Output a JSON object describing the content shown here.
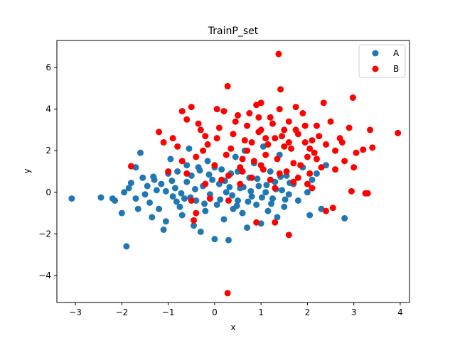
{
  "chart_data": {
    "type": "scatter",
    "title": "TrainP_set",
    "xlabel": "x",
    "ylabel": "y",
    "xlim": [
      -3.4,
      4.2
    ],
    "ylim": [
      -5.3,
      7.3
    ],
    "xticks": [
      -3,
      -2,
      -1,
      0,
      1,
      2,
      3,
      4
    ],
    "yticks": [
      -4,
      -2,
      0,
      2,
      4,
      6
    ],
    "xtick_labels": [
      "−3",
      "−2",
      "−1",
      "0",
      "1",
      "2",
      "3",
      "4"
    ],
    "ytick_labels": [
      "−4",
      "−2",
      "0",
      "2",
      "4",
      "6"
    ],
    "grid": false,
    "legend_position": "top-right",
    "series": [
      {
        "name": "A",
        "color": "#1f77b4",
        "points": [
          [
            -3.08,
            -0.3
          ],
          [
            -2.45,
            -0.25
          ],
          [
            -2.2,
            -0.3
          ],
          [
            -2.15,
            -0.4
          ],
          [
            -2.0,
            -1.0
          ],
          [
            -1.95,
            0.0
          ],
          [
            -1.9,
            -2.6
          ],
          [
            -1.85,
            0.2
          ],
          [
            -1.8,
            0.45
          ],
          [
            -1.7,
            -0.3
          ],
          [
            -1.65,
            -0.8
          ],
          [
            -1.6,
            1.9
          ],
          [
            -1.55,
            0.7
          ],
          [
            -1.5,
            -0.1
          ],
          [
            -1.45,
            0.3
          ],
          [
            -1.4,
            -0.5
          ],
          [
            -1.35,
            -1.2
          ],
          [
            -1.3,
            0.6
          ],
          [
            -1.25,
            0.1
          ],
          [
            -1.2,
            -0.8
          ],
          [
            -1.15,
            0.4
          ],
          [
            -1.1,
            -1.8
          ],
          [
            -1.05,
            -1.4
          ],
          [
            -1.0,
            0.9
          ],
          [
            -0.95,
            1.6
          ],
          [
            -0.9,
            -0.2
          ],
          [
            -0.85,
            0.2
          ],
          [
            -0.8,
            1.0
          ],
          [
            -0.75,
            -0.7
          ],
          [
            -0.7,
            -1.1
          ],
          [
            -0.65,
            -0.3
          ],
          [
            -0.6,
            0.5
          ],
          [
            -0.55,
            2.1
          ],
          [
            -0.5,
            0.8
          ],
          [
            -0.45,
            -1.6
          ],
          [
            -0.4,
            -0.4
          ],
          [
            -0.35,
            1.2
          ],
          [
            -0.3,
            -1.9
          ],
          [
            -0.25,
            0.3
          ],
          [
            -0.2,
            -0.9
          ],
          [
            -0.15,
            1.5
          ],
          [
            -0.1,
            -0.1
          ],
          [
            -0.05,
            0.6
          ],
          [
            0.0,
            -2.25
          ],
          [
            0.05,
            -0.6
          ],
          [
            0.1,
            0.4
          ],
          [
            0.15,
            1.1
          ],
          [
            0.2,
            -1.3
          ],
          [
            0.25,
            0.0
          ],
          [
            0.3,
            -2.3
          ],
          [
            0.35,
            0.9
          ],
          [
            0.4,
            -0.8
          ],
          [
            0.45,
            1.7
          ],
          [
            0.5,
            -0.4
          ],
          [
            0.55,
            0.2
          ],
          [
            0.6,
            -1.0
          ],
          [
            0.65,
            2.0
          ],
          [
            0.7,
            -1.7
          ],
          [
            0.75,
            0.7
          ],
          [
            0.8,
            -0.2
          ],
          [
            0.85,
            1.4
          ],
          [
            0.9,
            -0.6
          ],
          [
            0.95,
            0.3
          ],
          [
            1.0,
            -1.5
          ],
          [
            1.05,
            2.2
          ],
          [
            1.1,
            0.0
          ],
          [
            1.15,
            -0.9
          ],
          [
            1.2,
            1.0
          ],
          [
            1.25,
            -0.3
          ],
          [
            1.3,
            0.5
          ],
          [
            1.35,
            -1.2
          ],
          [
            1.4,
            1.8
          ],
          [
            1.45,
            0.1
          ],
          [
            1.5,
            -0.7
          ],
          [
            1.55,
            0.8
          ],
          [
            1.6,
            -0.1
          ],
          [
            1.7,
            0.4
          ],
          [
            1.8,
            -0.4
          ],
          [
            1.9,
            1.2
          ],
          [
            2.0,
            0.0
          ],
          [
            2.05,
            -1.1
          ],
          [
            2.1,
            0.6
          ],
          [
            2.2,
            0.9
          ],
          [
            2.3,
            -0.8
          ],
          [
            2.4,
            1.3
          ],
          [
            2.8,
            -1.25
          ],
          [
            -1.7,
            1.2
          ],
          [
            -0.6,
            1.3
          ],
          [
            0.0,
            1.2
          ],
          [
            0.5,
            1.0
          ],
          [
            -1.05,
            0.05
          ],
          [
            -0.72,
            -0.05
          ],
          [
            -0.42,
            0.15
          ],
          [
            0.12,
            -0.35
          ],
          [
            0.62,
            0.25
          ],
          [
            1.02,
            -0.25
          ],
          [
            1.32,
            0.15
          ],
          [
            -0.22,
            -0.55
          ],
          [
            0.38,
            -0.15
          ],
          [
            0.78,
            0.05
          ],
          [
            1.12,
            0.35
          ],
          [
            -0.52,
            -0.25
          ],
          [
            -0.82,
            -0.45
          ],
          [
            0.22,
            0.55
          ],
          [
            0.92,
            0.65
          ],
          [
            1.62,
            0.45
          ],
          [
            -1.32,
            0.75
          ],
          [
            -0.12,
            0.85
          ],
          [
            0.48,
            -0.65
          ],
          [
            1.22,
            -0.55
          ],
          [
            -0.32,
            1.05
          ],
          [
            0.72,
            -0.45
          ],
          [
            1.52,
            -0.35
          ],
          [
            -0.92,
            0.55
          ],
          [
            0.32,
            0.25
          ],
          [
            1.42,
            0.75
          ]
        ]
      },
      {
        "name": "B",
        "color": "#ff0000",
        "points": [
          [
            0.28,
            -4.85
          ],
          [
            1.38,
            6.65
          ],
          [
            0.28,
            5.1
          ],
          [
            1.42,
            4.95
          ],
          [
            2.98,
            4.55
          ],
          [
            3.95,
            2.85
          ],
          [
            3.35,
            3.0
          ],
          [
            3.4,
            2.15
          ],
          [
            3.2,
            2.05
          ],
          [
            3.25,
            -0.05
          ],
          [
            3.3,
            -0.05
          ],
          [
            2.95,
            0.05
          ],
          [
            2.55,
            -0.75
          ],
          [
            1.6,
            -2.05
          ],
          [
            1.3,
            -1.45
          ],
          [
            0.9,
            -1.45
          ],
          [
            -0.45,
            -1.35
          ],
          [
            -0.2,
            0.4
          ],
          [
            -0.5,
            -0.4
          ],
          [
            -0.4,
            -1.0
          ],
          [
            -1.8,
            1.25
          ],
          [
            -1.2,
            2.9
          ],
          [
            -1.0,
            1.0
          ],
          [
            -0.7,
            1.5
          ],
          [
            -0.5,
            4.1
          ],
          [
            -0.3,
            3.0
          ],
          [
            -0.15,
            2.3
          ],
          [
            0.05,
            2.6
          ],
          [
            0.2,
            3.9
          ],
          [
            0.35,
            2.1
          ],
          [
            0.5,
            3.7
          ],
          [
            0.6,
            1.6
          ],
          [
            0.7,
            3.2
          ],
          [
            0.8,
            2.4
          ],
          [
            0.9,
            4.2
          ],
          [
            1.0,
            3.0
          ],
          [
            1.1,
            1.8
          ],
          [
            1.2,
            3.6
          ],
          [
            1.3,
            2.6
          ],
          [
            1.4,
            4.0
          ],
          [
            1.5,
            2.2
          ],
          [
            1.6,
            3.4
          ],
          [
            1.7,
            1.4
          ],
          [
            1.8,
            2.8
          ],
          [
            1.9,
            3.8
          ],
          [
            2.0,
            1.7
          ],
          [
            2.1,
            2.5
          ],
          [
            2.2,
            3.2
          ],
          [
            2.3,
            1.2
          ],
          [
            2.4,
            2.3
          ],
          [
            2.5,
            3.4
          ],
          [
            2.6,
            2.0
          ],
          [
            2.7,
            2.6
          ],
          [
            2.8,
            1.5
          ],
          [
            2.9,
            3.1
          ],
          [
            3.0,
            1.2
          ],
          [
            -0.8,
            2.2
          ],
          [
            -0.6,
            3.5
          ],
          [
            -0.4,
            1.7
          ],
          [
            -0.2,
            2.7
          ],
          [
            0.0,
            1.3
          ],
          [
            0.1,
            3.1
          ],
          [
            0.25,
            1.8
          ],
          [
            0.4,
            2.8
          ],
          [
            0.55,
            1.2
          ],
          [
            0.65,
            2.5
          ],
          [
            0.75,
            3.8
          ],
          [
            0.85,
            1.5
          ],
          [
            0.95,
            2.9
          ],
          [
            1.05,
            1.1
          ],
          [
            1.15,
            2.3
          ],
          [
            1.25,
            3.3
          ],
          [
            1.35,
            1.6
          ],
          [
            1.45,
            2.7
          ],
          [
            1.55,
            1.0
          ],
          [
            1.65,
            2.1
          ],
          [
            1.75,
            3.0
          ],
          [
            1.85,
            1.3
          ],
          [
            1.95,
            2.4
          ],
          [
            2.05,
            0.9
          ],
          [
            2.15,
            1.9
          ],
          [
            2.25,
            2.7
          ],
          [
            0.3,
            0.8
          ],
          [
            0.8,
            0.7
          ],
          [
            1.2,
            0.6
          ],
          [
            1.7,
            0.5
          ],
          [
            2.1,
            0.2
          ],
          [
            2.4,
            -0.9
          ],
          [
            -0.1,
            -0.3
          ],
          [
            0.3,
            -0.4
          ],
          [
            -0.9,
            2.6
          ],
          [
            -0.6,
            0.9
          ],
          [
            0.15,
            0.6
          ],
          [
            0.6,
            1.0
          ],
          [
            1.0,
            1.3
          ],
          [
            1.4,
            0.9
          ],
          [
            1.8,
            0.7
          ],
          [
            2.2,
            1.6
          ],
          [
            2.6,
            1.1
          ],
          [
            -0.35,
            3.3
          ],
          [
            0.45,
            3.4
          ],
          [
            0.95,
            3.6
          ],
          [
            1.5,
            3.0
          ],
          [
            1.95,
            3.2
          ],
          [
            2.35,
            4.3
          ],
          [
            -1.1,
            2.4
          ],
          [
            -0.25,
            2.0
          ],
          [
            0.7,
            2.0
          ],
          [
            1.1,
            2.6
          ],
          [
            1.6,
            2.4
          ],
          [
            2.05,
            2.1
          ],
          [
            2.75,
            2.4
          ],
          [
            3.05,
            1.9
          ],
          [
            -0.7,
            3.9
          ],
          [
            0.05,
            4.0
          ],
          [
            1.0,
            4.3
          ],
          [
            1.75,
            4.1
          ],
          [
            0.55,
            0.4
          ],
          [
            1.3,
            0.2
          ],
          [
            2.0,
            0.4
          ]
        ]
      }
    ]
  }
}
